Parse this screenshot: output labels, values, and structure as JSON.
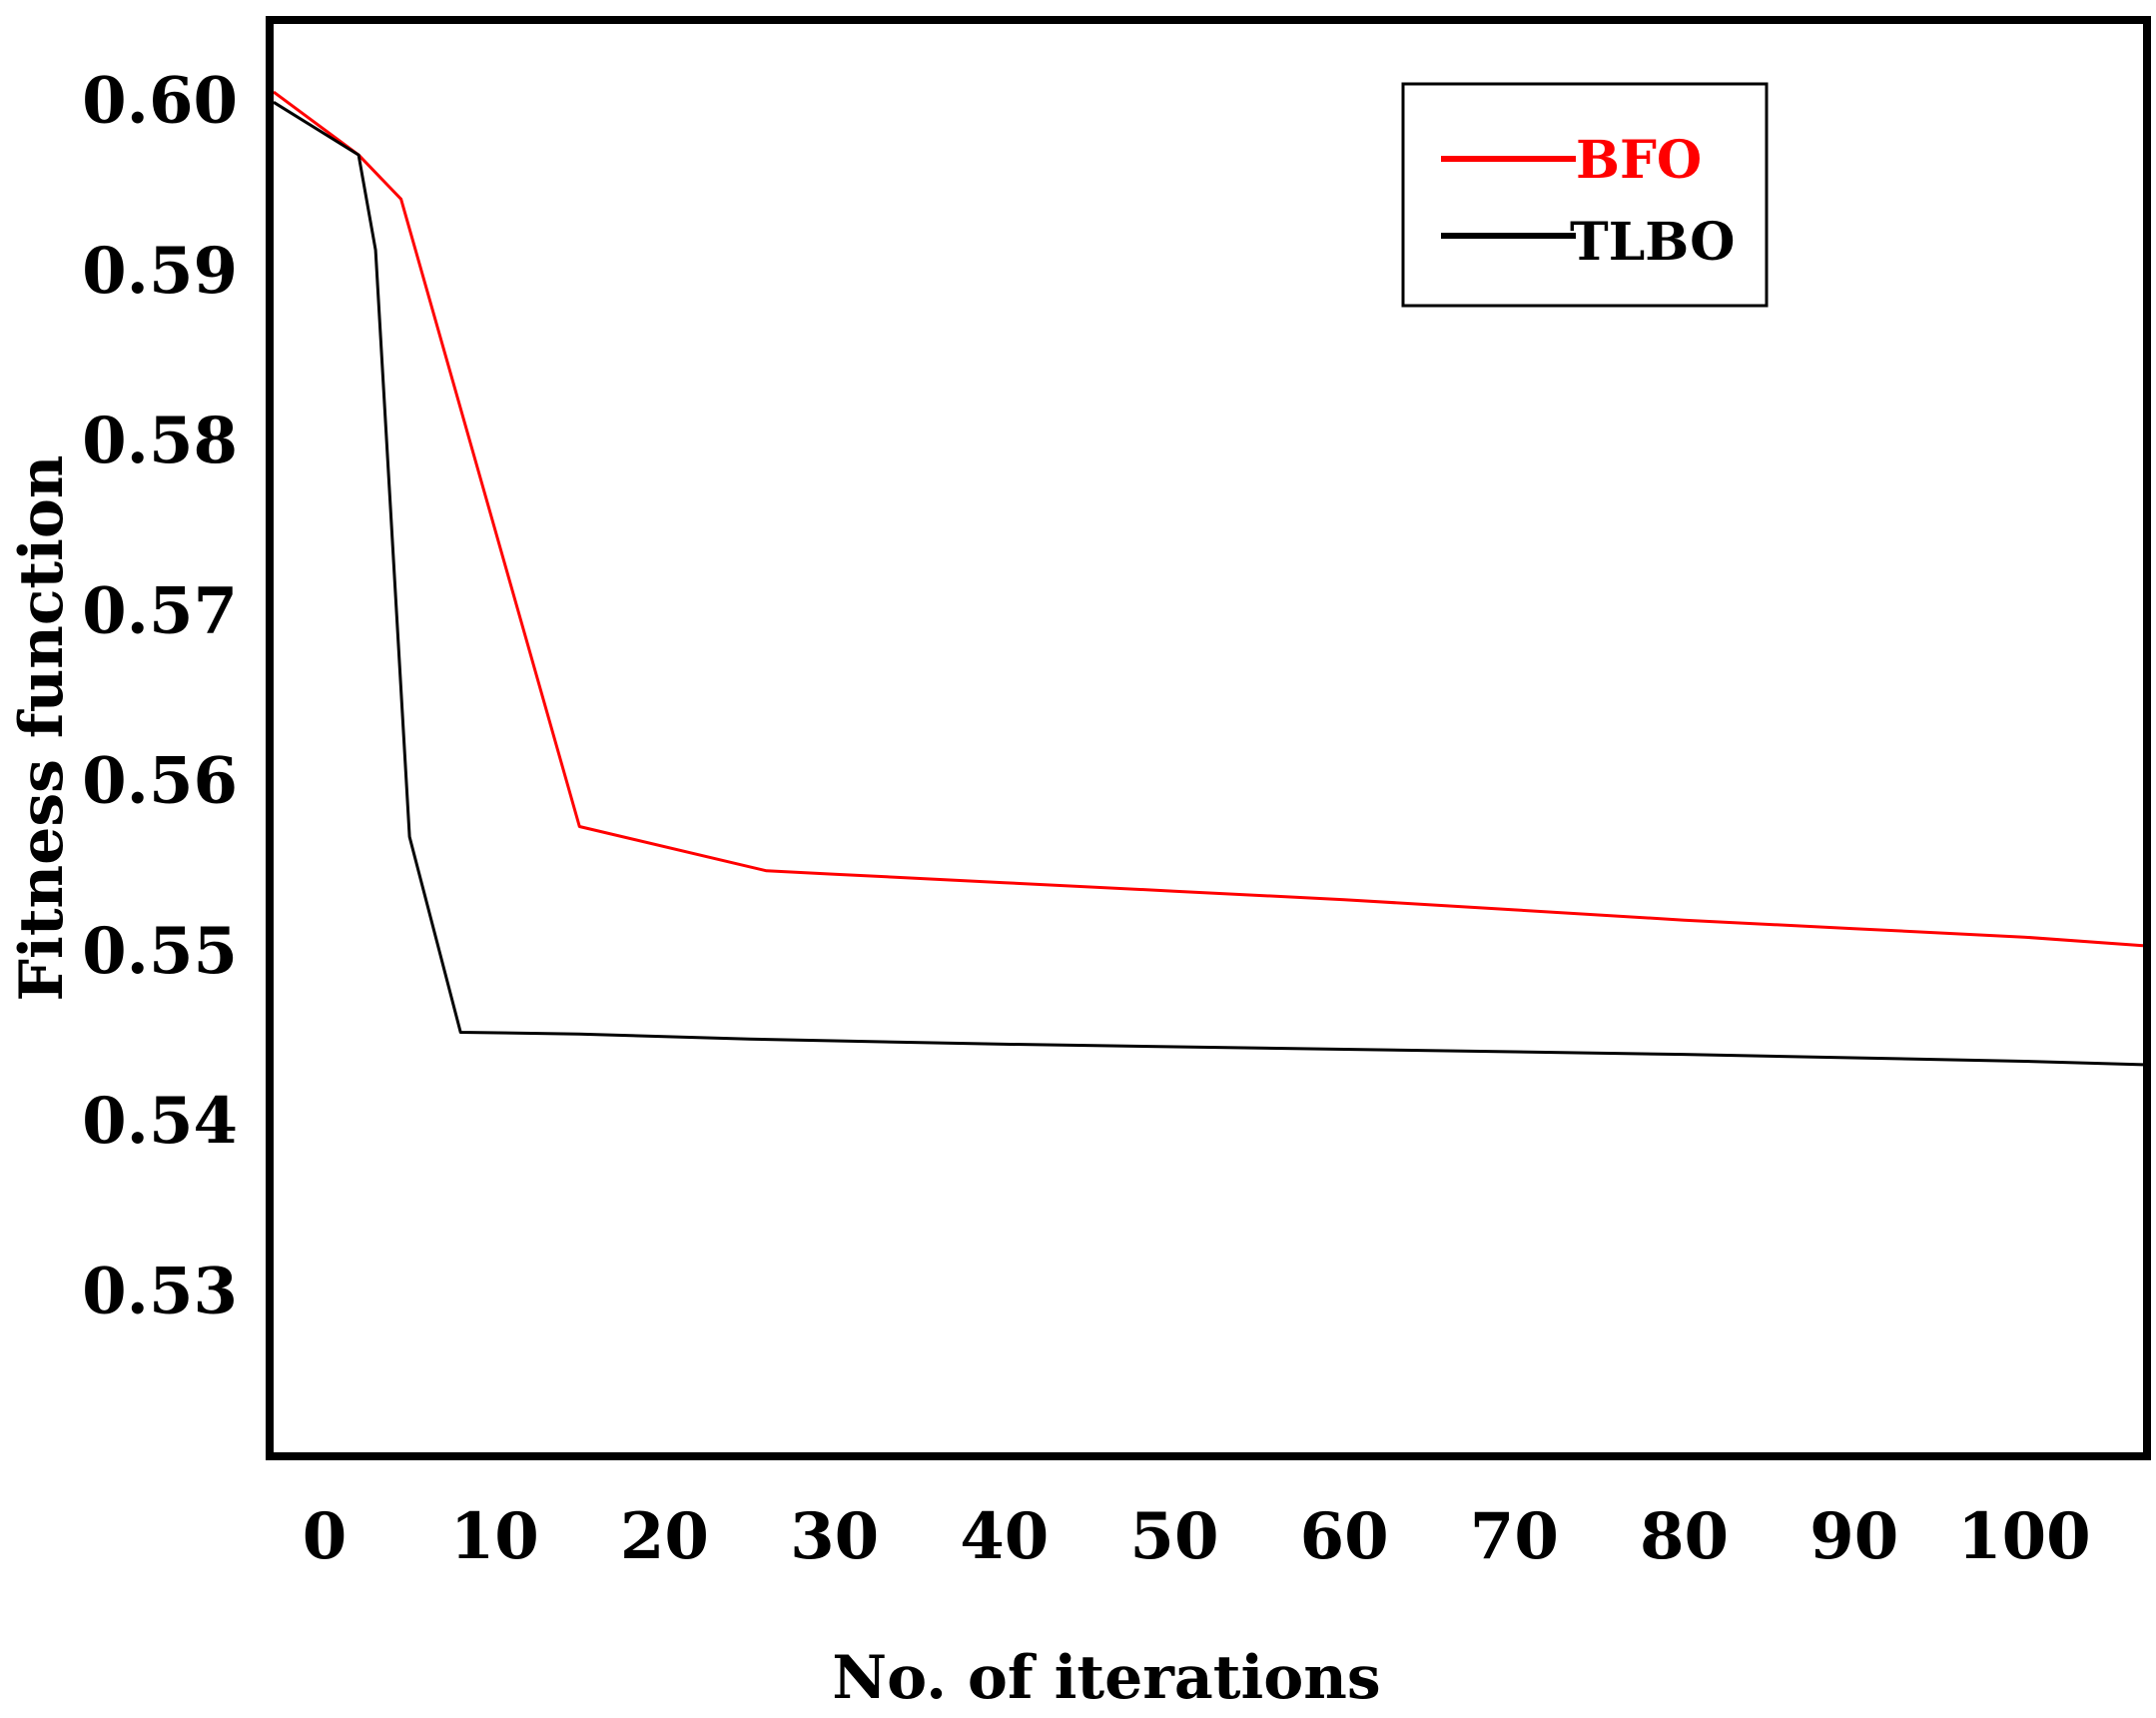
{
  "chart_data": {
    "type": "line",
    "title": "",
    "xlabel": "No. of iterations",
    "ylabel": "Fitness function",
    "xlim": [
      -3,
      107
    ],
    "ylim": [
      0.5205,
      0.6045
    ],
    "xticks": [
      "0",
      "10",
      "20",
      "30",
      "40",
      "50",
      "60",
      "70",
      "80",
      "90",
      "100"
    ],
    "yticks": [
      "0.60",
      "0.59",
      "0.58",
      "0.57",
      "0.56",
      "0.55",
      "0.54",
      "0.53"
    ],
    "grid": false,
    "legend_position": "top-right",
    "series": [
      {
        "name": "BFO",
        "color": "#ff0000",
        "x": [
          -3,
          2,
          4.5,
          15,
          26,
          30,
          40,
          50,
          60,
          70,
          80,
          90,
          100,
          107
        ],
        "y": [
          0.6005,
          0.5968,
          0.5942,
          0.5573,
          0.5547,
          0.5545,
          0.554,
          0.5535,
          0.553,
          0.5524,
          0.5518,
          0.5513,
          0.5508,
          0.5503
        ]
      },
      {
        "name": "TLBO",
        "color": "#000000",
        "x": [
          -3,
          2,
          3,
          5,
          8,
          15,
          25,
          40,
          60,
          80,
          100,
          107
        ],
        "y": [
          0.5999,
          0.5968,
          0.5912,
          0.5567,
          0.5452,
          0.5451,
          0.5448,
          0.5445,
          0.5442,
          0.5439,
          0.5435,
          0.5433
        ]
      }
    ]
  }
}
